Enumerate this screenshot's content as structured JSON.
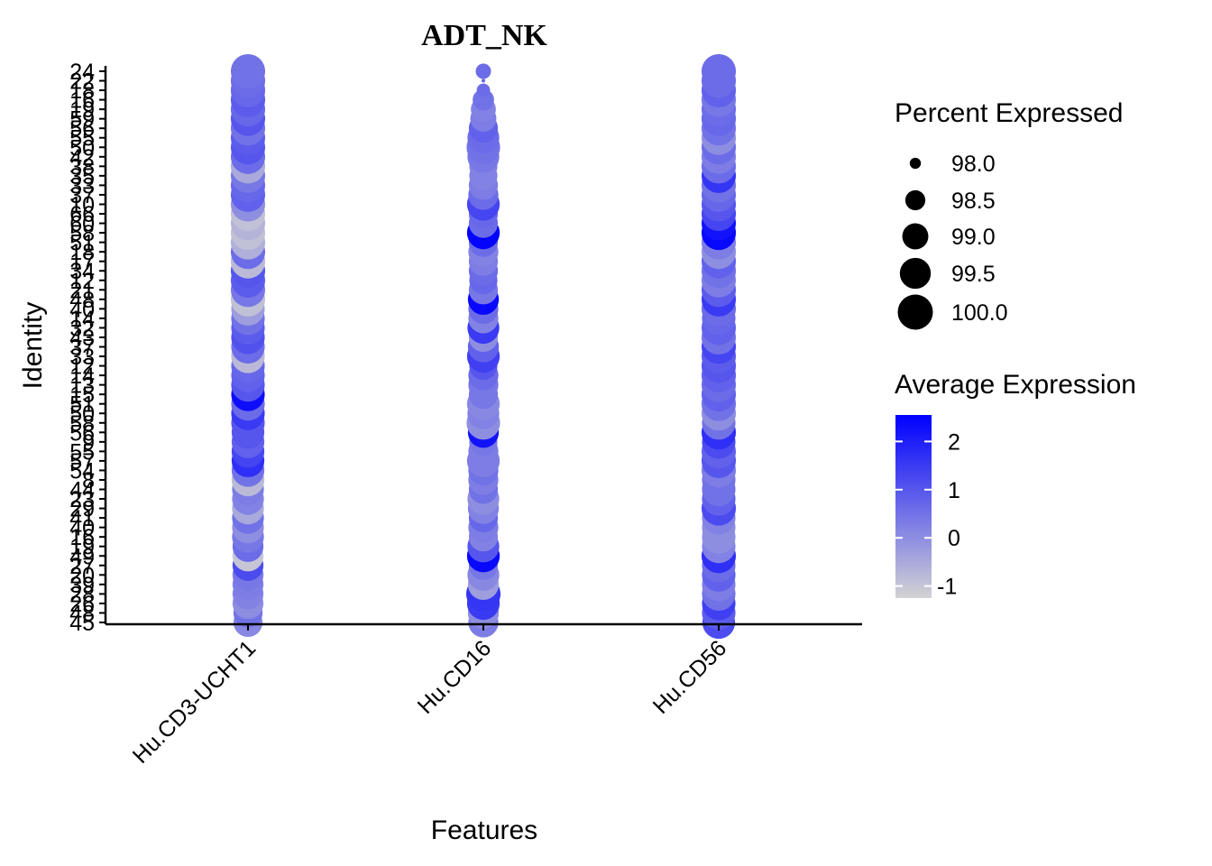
{
  "chart_data": {
    "type": "scatter",
    "subtype": "dot-plot",
    "title": "ADT_NK",
    "xlabel": "Features",
    "ylabel": "Identity",
    "features": [
      "Hu.CD3-UCHT1",
      "Hu.CD16",
      "Hu.CD56"
    ],
    "identities": [
      "45",
      "48",
      "26",
      "28",
      "39",
      "20",
      "27",
      "49",
      "19",
      "16",
      "40",
      "41",
      "29",
      "23",
      "44",
      "8",
      "54",
      "57",
      "55",
      "9",
      "56",
      "58",
      "50",
      "51",
      "15",
      "13",
      "14",
      "12",
      "33",
      "37",
      "43",
      "32",
      "14",
      "40",
      "48",
      "21",
      "12",
      "34",
      "17",
      "18",
      "51",
      "58",
      "60",
      "66",
      "10",
      "37",
      "33",
      "35",
      "38",
      "42",
      "50",
      "55",
      "56",
      "59",
      "19",
      "16",
      "18",
      "22",
      "24"
    ],
    "percent_legend": {
      "title": "Percent Expressed",
      "breaks": [
        "98.0",
        "98.5",
        "99.0",
        "99.5",
        "100.0"
      ],
      "values": [
        98.0,
        98.5,
        99.0,
        99.5,
        100.0
      ]
    },
    "color_legend": {
      "title": "Average Expression",
      "ticks": [
        "2",
        "1",
        "0",
        "-1"
      ],
      "tick_values": [
        2,
        1,
        0,
        -1
      ],
      "range": [
        -1.25,
        2.55
      ],
      "low_color": "#D3D3D3",
      "high_color": "#0000FF"
    },
    "series": [
      {
        "name": "Hu.CD3-UCHT1",
        "values": [
          0.1,
          0.5,
          0.0,
          0.2,
          0.3,
          0.4,
          1.2,
          -1.0,
          0.6,
          0.4,
          0.0,
          0.5,
          -0.5,
          0.2,
          0.3,
          -0.8,
          0.5,
          1.7,
          1.3,
          0.8,
          1.0,
          1.0,
          1.5,
          0.6,
          2.3,
          1.0,
          0.8,
          0.7,
          -0.8,
          0.6,
          1.1,
          0.9,
          0.5,
          -0.3,
          -0.9,
          0.4,
          0.9,
          1.0,
          -0.8,
          0.6,
          -0.6,
          -0.9,
          -0.7,
          -0.9,
          0.0,
          0.8,
          0.7,
          0.4,
          -0.5,
          0.6,
          1.0,
          0.9,
          0.5,
          1.0,
          0.7,
          0.9,
          0.7,
          0.6,
          0.5
        ],
        "pct": [
          99.3,
          99.3,
          99.5,
          99.5,
          99.5,
          99.5,
          99.5,
          99.5,
          99.5,
          99.6,
          99.6,
          99.6,
          99.6,
          99.6,
          99.6,
          99.7,
          99.7,
          99.7,
          99.7,
          99.7,
          99.7,
          99.8,
          99.8,
          99.8,
          99.8,
          99.8,
          99.8,
          99.8,
          99.8,
          99.8,
          99.8,
          99.8,
          99.8,
          99.8,
          99.9,
          99.9,
          99.9,
          99.9,
          99.9,
          99.9,
          99.9,
          99.9,
          99.9,
          99.9,
          99.9,
          99.9,
          99.9,
          99.9,
          99.9,
          99.9,
          99.9,
          99.9,
          99.9,
          99.9,
          99.9,
          99.9,
          99.9,
          99.9,
          99.9
        ]
      },
      {
        "name": "Hu.CD16",
        "values": [
          0.3,
          0.0,
          1.5,
          1.6,
          -0.3,
          0.1,
          0.4,
          2.4,
          1.0,
          0.2,
          0.3,
          0.7,
          0.2,
          0.0,
          0.5,
          0.3,
          0.5,
          0.3,
          0.3,
          0.4,
          2.2,
          0.0,
          0.2,
          0.1,
          0.4,
          0.4,
          0.6,
          1.0,
          1.4,
          0.8,
          0.0,
          1.5,
          0.2,
          0.6,
          2.4,
          0.4,
          0.7,
          0.6,
          0.3,
          0.2,
          0.6,
          2.5,
          0.6,
          0.7,
          1.3,
          0.6,
          0.3,
          0.2,
          0.2,
          0.4,
          0.5,
          0.6,
          0.8,
          0.3,
          0.2,
          0.5,
          0.6,
          0.7,
          0.6
        ],
        "pct": [
          99.4,
          99.5,
          99.7,
          99.9,
          99.5,
          99.6,
          99.3,
          99.7,
          99.6,
          99.3,
          99.4,
          99.3,
          99.5,
          99.6,
          99.3,
          99.4,
          99.4,
          99.7,
          99.4,
          99.2,
          99.5,
          99.8,
          99.6,
          99.7,
          99.3,
          99.4,
          99.4,
          99.2,
          99.7,
          99.5,
          99.3,
          99.6,
          99.4,
          99.4,
          99.5,
          99.3,
          99.2,
          99.3,
          99.3,
          99.4,
          99.3,
          99.7,
          99.3,
          99.3,
          99.7,
          99.4,
          99.3,
          99.2,
          99.2,
          99.6,
          99.8,
          99.6,
          99.3,
          99.0,
          98.9,
          98.6,
          98.1,
          97.8,
          98.2
        ]
      },
      {
        "name": "Hu.CD56",
        "values": [
          1.2,
          0.9,
          1.4,
          0.5,
          0.3,
          0.8,
          0.6,
          1.7,
          0.2,
          0.0,
          0.0,
          0.2,
          1.2,
          0.8,
          0.5,
          0.5,
          0.3,
          1.0,
          0.8,
          1.2,
          1.7,
          0.5,
          0.0,
          0.5,
          0.8,
          0.6,
          0.8,
          1.0,
          0.9,
          1.3,
          0.5,
          0.8,
          0.7,
          0.6,
          1.5,
          0.9,
          0.3,
          0.5,
          0.8,
          0.0,
          0.3,
          2.4,
          2.2,
          1.3,
          1.0,
          0.7,
          0.5,
          1.6,
          0.6,
          0.3,
          0.6,
          0.0,
          0.5,
          0.7,
          0.6,
          0.4,
          0.8,
          0.6,
          0.6
        ],
        "pct": [
          99.7,
          99.8,
          99.8,
          99.8,
          99.8,
          99.8,
          99.8,
          99.9,
          99.8,
          99.8,
          99.8,
          99.8,
          99.9,
          99.8,
          99.8,
          99.8,
          99.9,
          99.9,
          99.9,
          99.8,
          99.9,
          99.8,
          99.9,
          99.9,
          99.9,
          99.9,
          99.9,
          99.9,
          99.9,
          99.9,
          99.9,
          99.9,
          99.8,
          99.9,
          99.9,
          99.9,
          99.9,
          99.9,
          99.9,
          99.9,
          99.9,
          99.9,
          99.9,
          99.9,
          99.9,
          99.9,
          99.9,
          99.9,
          99.9,
          99.9,
          99.9,
          99.9,
          99.9,
          99.9,
          99.9,
          99.9,
          99.9,
          99.9,
          99.9
        ]
      }
    ],
    "grid": false,
    "legend_position": "right"
  }
}
